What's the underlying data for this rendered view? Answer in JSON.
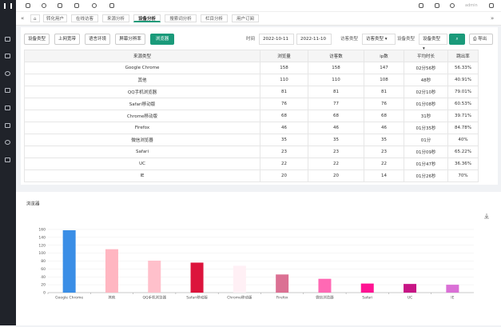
{
  "user": "admin",
  "tabs": [
    "转化用户",
    "在线访客",
    "来源分析",
    "设备分析",
    "搜索词分析",
    "栏目分析",
    "用户订阅"
  ],
  "active_tab": 3,
  "filters": [
    "设备类型",
    "上网宽带",
    "语言环境",
    "屏幕分辨率",
    "浏览器"
  ],
  "active_filter": 4,
  "time_label": "时间",
  "start_date": "2022-10-11",
  "end_date": "2022-11-10",
  "visitor_type_label": "访客类型",
  "visitor_type_value": "访客类型",
  "device_type_label": "设备类型",
  "device_type_value": "设备类型",
  "export": "导出",
  "table": {
    "headers": [
      "来源类型",
      "浏览量",
      "访客数",
      "ip数",
      "平均时长",
      "跳出率"
    ],
    "rows": [
      [
        "Google Chrome",
        "158",
        "158",
        "147",
        "02分56秒",
        "56.33%"
      ],
      [
        "其他",
        "110",
        "110",
        "108",
        "48秒",
        "40.91%"
      ],
      [
        "QQ手机浏览器",
        "81",
        "81",
        "81",
        "02分10秒",
        "79.01%"
      ],
      [
        "Safari移动版",
        "76",
        "77",
        "76",
        "01分08秒",
        "60.53%"
      ],
      [
        "Chrome移动版",
        "68",
        "68",
        "68",
        "31秒",
        "39.71%"
      ],
      [
        "Firefox",
        "46",
        "46",
        "46",
        "01分35秒",
        "84.78%"
      ],
      [
        "微信浏览器",
        "35",
        "35",
        "35",
        "01分",
        "40%"
      ],
      [
        "Safari",
        "23",
        "23",
        "23",
        "01分09秒",
        "65.22%"
      ],
      [
        "UC",
        "22",
        "22",
        "22",
        "01分47秒",
        "36.36%"
      ],
      [
        "IE",
        "20",
        "20",
        "14",
        "01分26秒",
        "70%"
      ]
    ]
  },
  "chart_data": {
    "type": "bar",
    "title": "浏览器",
    "categories": [
      "Google Chrome",
      "其他",
      "QQ手机浏览器",
      "Safari移动版",
      "Chrome移动版",
      "Firefox",
      "微信浏览器",
      "Safari",
      "UC",
      "IE"
    ],
    "values": [
      158,
      110,
      81,
      76,
      68,
      46,
      35,
      23,
      22,
      20
    ],
    "colors": [
      "#3a8ee6",
      "#ffb6c1",
      "#ffc0cb",
      "#dc143c",
      "#fff0f5",
      "#db7093",
      "#ff69b4",
      "#ff1493",
      "#c71585",
      "#da70d6"
    ],
    "ylim": [
      0,
      160
    ],
    "yticks": [
      0,
      20,
      40,
      60,
      80,
      100,
      120,
      140,
      160
    ],
    "grid": true
  }
}
